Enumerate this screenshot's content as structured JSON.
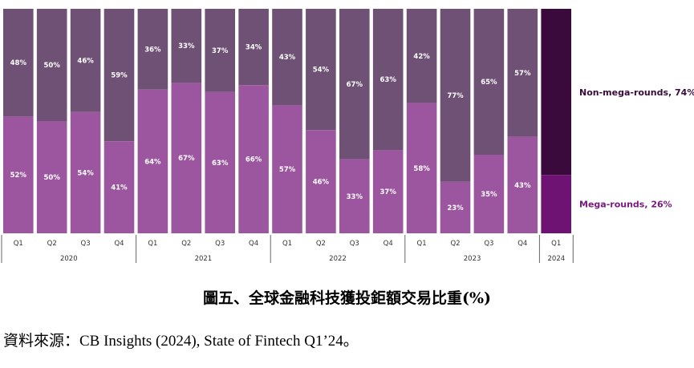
{
  "chart_data": {
    "type": "bar",
    "stacked": true,
    "percent_stacked": true,
    "categories": [
      "Q1",
      "Q2",
      "Q3",
      "Q4",
      "Q1",
      "Q2",
      "Q3",
      "Q4",
      "Q1",
      "Q2",
      "Q3",
      "Q4",
      "Q1",
      "Q2",
      "Q3",
      "Q4",
      "Q1"
    ],
    "years": [
      {
        "label": "2020",
        "quarters": 4
      },
      {
        "label": "2021",
        "quarters": 4
      },
      {
        "label": "2022",
        "quarters": 4
      },
      {
        "label": "2023",
        "quarters": 4
      },
      {
        "label": "2024",
        "quarters": 1
      }
    ],
    "series": [
      {
        "name": "Mega-rounds",
        "values": [
          52,
          50,
          54,
          41,
          64,
          67,
          63,
          66,
          57,
          46,
          33,
          37,
          58,
          23,
          35,
          43,
          26
        ],
        "labels": [
          "52%",
          "50%",
          "54%",
          "41%",
          "64%",
          "67%",
          "63%",
          "66%",
          "57%",
          "46%",
          "33%",
          "37%",
          "58%",
          "23%",
          "35%",
          "43%",
          ""
        ]
      },
      {
        "name": "Non-mega-rounds",
        "values": [
          48,
          50,
          46,
          59,
          36,
          33,
          37,
          34,
          43,
          54,
          67,
          63,
          42,
          77,
          65,
          57,
          74
        ],
        "labels": [
          "48%",
          "50%",
          "46%",
          "59%",
          "36%",
          "33%",
          "37%",
          "34%",
          "43%",
          "54%",
          "67%",
          "63%",
          "42%",
          "77%",
          "65%",
          "57%",
          ""
        ]
      }
    ],
    "legend": {
      "position": "right",
      "entries": [
        "Non-mega-rounds, 74%",
        "Mega-rounds, 26%"
      ]
    },
    "ylim": [
      0,
      100
    ],
    "grid": false
  },
  "colors": {
    "mega": "#9c56a0",
    "non_mega": "#6e5174",
    "mega_highlight": "#6e1273",
    "non_mega_highlight": "#3b0a3c",
    "legend_non_mega": "#3b0a3c",
    "legend_mega": "#7a1a80",
    "label_text": "#ffffff",
    "axis": "#666666"
  },
  "caption": "圖五、全球金融科技獲投鉅額交易比重(%)",
  "source": "資料來源：CB Insights (2024), State of Fintech Q1’24。"
}
